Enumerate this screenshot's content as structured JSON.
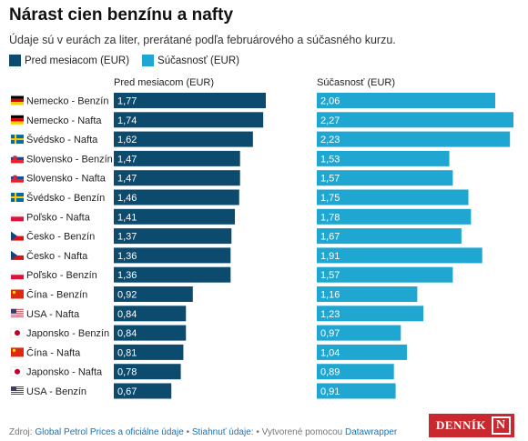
{
  "title": "Nárast cien benzínu a nafty",
  "subtitle": "Údaje sú v eurách za liter, prerátané podľa februárového a súčasného kurzu.",
  "legend": [
    {
      "label": "Pred mesiacom (EUR)",
      "color": "#0c4a6e"
    },
    {
      "label": "Súčasnosť (EUR)",
      "color": "#1fa6d1"
    }
  ],
  "footer": {
    "source_prefix": "Zdroj:",
    "source_link": "Global Petrol Prices a oficiálne údaje",
    "sep1": "•",
    "download": "Stiahnuť údaje:",
    "sep2": "•",
    "made_with": "Vytvorené pomocou",
    "made_link": "Datawrapper"
  },
  "logo": {
    "text": "DENNÍK",
    "mark": "N"
  },
  "chart_data": {
    "type": "bar",
    "orientation": "horizontal",
    "categories": [
      "Nemecko - Benzín",
      "Nemecko - Nafta",
      "Švédsko - Nafta",
      "Slovensko - Benzín",
      "Slovensko - Nafta",
      "Švédsko - Benzín",
      "Poľsko - Nafta",
      "Česko - Benzín",
      "Česko - Nafta",
      "Poľsko - Benzín",
      "Čína - Benzín",
      "USA - Nafta",
      "Japonsko - Benzín",
      "Čína - Nafta",
      "Japonsko - Nafta",
      "USA - Benzín"
    ],
    "flags": [
      "germany-flag-icon",
      "germany-flag-icon",
      "sweden-flag-icon",
      "slovakia-flag-icon",
      "slovakia-flag-icon",
      "sweden-flag-icon",
      "poland-flag-icon",
      "czechia-flag-icon",
      "czechia-flag-icon",
      "poland-flag-icon",
      "china-flag-icon",
      "usa-flag-icon",
      "japan-flag-icon",
      "china-flag-icon",
      "japan-flag-icon",
      "usa-flag-icon"
    ],
    "series": [
      {
        "name": "Pred mesiacom (EUR)",
        "color": "#0c4a6e",
        "values": [
          1.77,
          1.74,
          1.62,
          1.47,
          1.47,
          1.46,
          1.41,
          1.37,
          1.36,
          1.36,
          0.92,
          0.84,
          0.84,
          0.81,
          0.78,
          0.67
        ],
        "labels": [
          "1,77",
          "1,74",
          "1,62",
          "1,47",
          "1,47",
          "1,46",
          "1,41",
          "1,37",
          "1,36",
          "1,36",
          "0,92",
          "0,84",
          "0,84",
          "0,81",
          "0,78",
          "0,67"
        ]
      },
      {
        "name": "Súčasnosť (EUR)",
        "color": "#1fa6d1",
        "values": [
          2.06,
          2.27,
          2.23,
          1.53,
          1.57,
          1.75,
          1.78,
          1.67,
          1.91,
          1.57,
          1.16,
          1.23,
          0.97,
          1.04,
          0.89,
          0.91
        ],
        "labels": [
          "2,06",
          "2,27",
          "2,23",
          "1,53",
          "1,57",
          "1,75",
          "1,78",
          "1,67",
          "1,91",
          "1,57",
          "1,16",
          "1,23",
          "0,97",
          "1,04",
          "0,89",
          "0,91"
        ]
      }
    ],
    "xlim": [
      0,
      2.27
    ]
  }
}
